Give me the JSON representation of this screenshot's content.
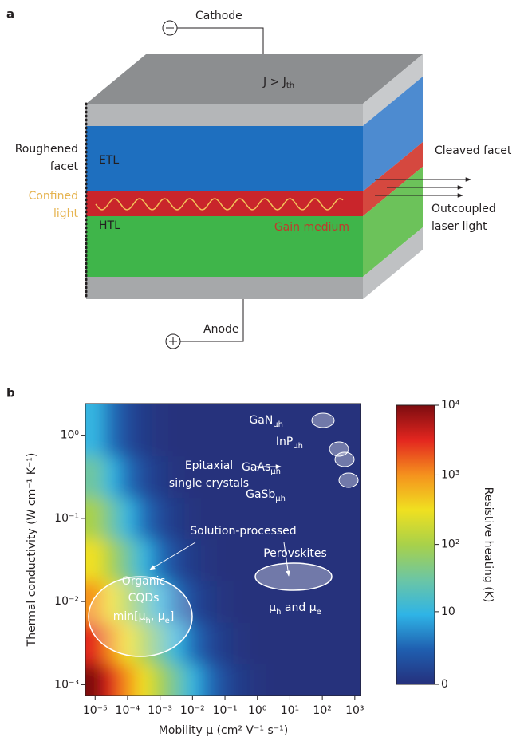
{
  "diagram": {
    "panel_label": "a",
    "cathode": "Cathode",
    "current": [
      "J > J",
      "th"
    ],
    "roughened_facet": [
      "Roughened",
      "facet"
    ],
    "etl": "ETL",
    "confined_light": [
      "Confined",
      "light"
    ],
    "htl": "HTL",
    "gain_medium": "Gain medium",
    "cleaved_facet": "Cleaved facet",
    "outcoupled": [
      "Outcoupled",
      "laser light"
    ],
    "anode": "Anode"
  },
  "chart_data": {
    "type": "heatmap",
    "panel_label": "b",
    "xlabel": "Mobility μ (cm² V⁻¹ s⁻¹)",
    "ylabel": "Thermal conductivity (W cm⁻¹ K⁻¹)",
    "colorbar_label": "Resistive heating (K)",
    "xscale": "log",
    "yscale": "log",
    "color_scale": "log1p",
    "xlim": [
      5e-06,
      1500
    ],
    "ylim": [
      0.00074,
      2.4
    ],
    "clim": [
      0,
      10000
    ],
    "xticks": [
      {
        "value": 1e-05,
        "label": "10⁻⁵"
      },
      {
        "value": 0.0001,
        "label": "10⁻⁴"
      },
      {
        "value": 0.001,
        "label": "10⁻³"
      },
      {
        "value": 0.01,
        "label": "10⁻²"
      },
      {
        "value": 0.1,
        "label": "10⁻¹"
      },
      {
        "value": 1,
        "label": "10⁰"
      },
      {
        "value": 10,
        "label": "10¹"
      },
      {
        "value": 100,
        "label": "10²"
      },
      {
        "value": 1000,
        "label": "10³"
      }
    ],
    "yticks": [
      {
        "value": 0.001,
        "label": "10⁻³"
      },
      {
        "value": 0.01,
        "label": "10⁻²"
      },
      {
        "value": 0.1,
        "label": "10⁻¹"
      },
      {
        "value": 1,
        "label": "10⁰"
      }
    ],
    "cticks": [
      0,
      10,
      {
        "value": 100,
        "label": "10²"
      },
      {
        "value": 1000,
        "label": "10³"
      },
      {
        "value": 10000,
        "label": "10⁴"
      }
    ],
    "colormap": [
      "#25307c",
      "#1f5fb0",
      "#2fb4e6",
      "#6cc6a4",
      "#a8d14a",
      "#f0e020",
      "#f5921e",
      "#e3261f",
      "#7d0c10"
    ],
    "x": [
      1e-05,
      3.16e-05,
      0.0001,
      0.000316,
      0.001,
      0.00316,
      0.01,
      0.0316,
      0.1,
      0.316,
      1,
      3.16,
      10,
      31.6,
      100,
      316,
      1000
    ],
    "y": [
      0.001,
      0.00316,
      0.01,
      0.0316,
      0.1,
      0.316,
      1
    ],
    "z": [
      [
        10000,
        3162,
        1000,
        316,
        100,
        32,
        10,
        3,
        1,
        0.3,
        0.1,
        0,
        0,
        0,
        0,
        0,
        0
      ],
      [
        3162,
        1000,
        316,
        100,
        32,
        10,
        3,
        1,
        0.3,
        0.1,
        0,
        0,
        0,
        0,
        0,
        0,
        0
      ],
      [
        1000,
        316,
        100,
        32,
        10,
        3,
        1,
        0.3,
        0.1,
        0,
        0,
        0,
        0,
        0,
        0,
        0,
        0
      ],
      [
        316,
        100,
        32,
        10,
        3,
        1,
        0.3,
        0.1,
        0,
        0,
        0,
        0,
        0,
        0,
        0,
        0,
        0
      ],
      [
        100,
        32,
        10,
        3,
        1,
        0.3,
        0.1,
        0,
        0,
        0,
        0,
        0,
        0,
        0,
        0,
        0,
        0
      ],
      [
        32,
        10,
        3,
        1,
        0.3,
        0.1,
        0,
        0,
        0,
        0,
        0,
        0,
        0,
        0,
        0,
        0,
        0
      ],
      [
        10,
        3,
        1,
        0.3,
        0.1,
        0,
        0,
        0,
        0,
        0,
        0,
        0,
        0,
        0,
        0,
        0,
        0
      ]
    ],
    "annotations": [
      {
        "parts": [
          "GaN",
          "μh"
        ]
      },
      {
        "parts": [
          "InP",
          "μh"
        ]
      },
      {
        "parts": [
          "GaAs",
          "μh"
        ]
      },
      {
        "parts": [
          "GaSb",
          "μh"
        ]
      },
      {
        "parts": [
          "Epitaxial"
        ]
      },
      {
        "parts": [
          "single crystals"
        ]
      },
      {
        "parts": [
          "Solution-processed"
        ]
      },
      {
        "parts": [
          "Organic"
        ]
      },
      {
        "parts": [
          "CQDs"
        ]
      },
      {
        "parts": [
          "min[μ",
          "h",
          ", μ",
          "e",
          "]"
        ]
      },
      {
        "parts": [
          "Perovskites"
        ]
      },
      {
        "parts": [
          "μ",
          "h",
          " and μ",
          "e"
        ]
      }
    ]
  }
}
